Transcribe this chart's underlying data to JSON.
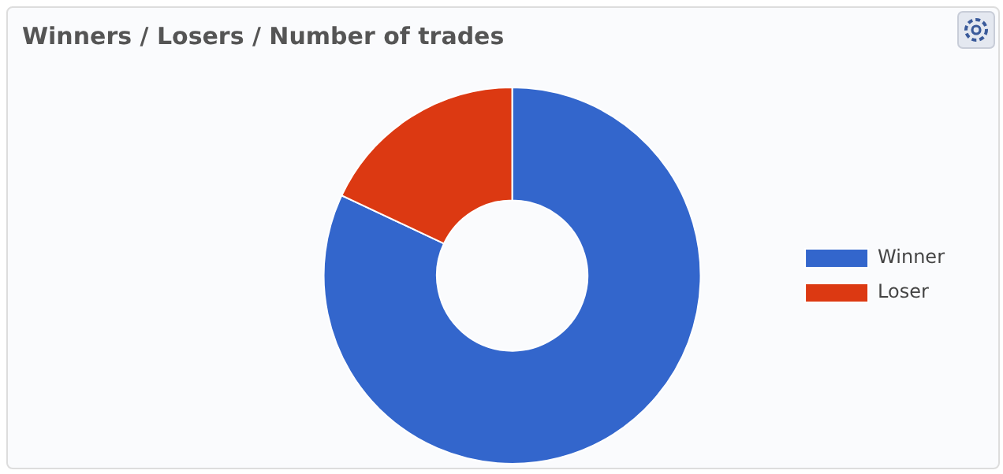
{
  "chart_data": {
    "type": "donut",
    "title": "Winners / Losers / Number of trades",
    "categories": [
      "Winner",
      "Loser"
    ],
    "values": [
      82,
      18
    ],
    "colors": [
      "#3366cc",
      "#dc3912"
    ],
    "legend": "right"
  }
}
